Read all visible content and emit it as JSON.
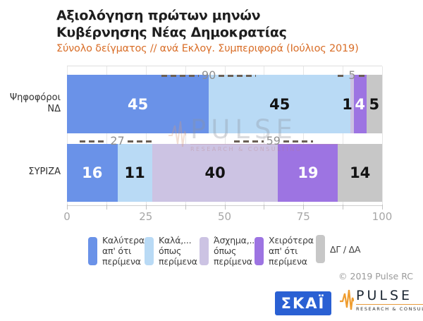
{
  "header": {
    "title_line1": "Αξιολόγηση πρώτων μηνών",
    "title_line2": "Κυβέρνησης Νέας Δημοκρατίας",
    "subtitle": "Σύνολο δείγματος // ανά Εκλογ. Συμπεριφορά (Ιούλιος 2019)"
  },
  "chart_data": {
    "type": "bar",
    "orientation": "horizontal_stacked",
    "title": "Αξιολόγηση πρώτων μηνών Κυβέρνησης Νέας Δημοκρατίας",
    "categories": [
      "Ψηφοφόροι ΝΔ",
      "ΣΥΡΙΖΑ"
    ],
    "category_labels": [
      [
        "Ψηφοφόροι",
        "ΝΔ"
      ],
      [
        "ΣΥΡΙΖΑ"
      ]
    ],
    "series": [
      {
        "name": "Καλύτερα απ' ότι περίμενα",
        "color": "#6a92e8",
        "label_color": "#ffffff",
        "values": [
          45,
          16
        ]
      },
      {
        "name": "Καλά,... όπως περίμενα",
        "color": "#b9daf5",
        "label_color": "#121212",
        "values": [
          45,
          11
        ]
      },
      {
        "name": "Άσχημα,... όπως περίμενα",
        "color": "#ccc3e3",
        "label_color": "#121212",
        "values": [
          1,
          40
        ]
      },
      {
        "name": "Χειρότερα απ' ότι περίμενα",
        "color": "#9d74e2",
        "label_color": "#ffffff",
        "values": [
          4,
          19
        ]
      },
      {
        "name": "ΔΓ / ΔΑ",
        "color": "#c7c7c7",
        "label_color": "#121212",
        "values": [
          5,
          14
        ]
      }
    ],
    "annotations": [
      {
        "row": 0,
        "label": "90",
        "span": [
          0,
          90
        ],
        "center": 45,
        "extent": 30
      },
      {
        "row": 0,
        "label": "5",
        "span": [
          90,
          95
        ],
        "center": 90.5,
        "extent": 9
      },
      {
        "row": 1,
        "label": "27",
        "span": [
          0,
          27
        ],
        "center": 16,
        "extent": 24
      },
      {
        "row": 1,
        "label": "59",
        "span": [
          27,
          86
        ],
        "center": 65.5,
        "extent": 25
      }
    ],
    "x_ticks": [
      0,
      25,
      50,
      75,
      100
    ],
    "x_minor_step": 12.5,
    "xlim": [
      0,
      100
    ],
    "grid": true,
    "legend_position": "bottom"
  },
  "legend": {
    "items": [
      {
        "lines": [
          "Καλύτερα",
          "απ' ότι",
          "περίμενα"
        ],
        "color": "#6a92e8"
      },
      {
        "lines": [
          "Καλά,...",
          "όπως",
          "περίμενα"
        ],
        "color": "#b9daf5"
      },
      {
        "lines": [
          "Άσχημα,...",
          "όπως",
          "περίμενα"
        ],
        "color": "#ccc3e3"
      },
      {
        "lines": [
          "Χειρότερα",
          "απ' ότι",
          "περίμενα"
        ],
        "color": "#9d74e2"
      },
      {
        "lines": [
          "ΔΓ / ΔΑ"
        ],
        "color": "#c7c7c7"
      }
    ]
  },
  "watermark": {
    "text": "PULSE",
    "subtext": "RESEARCH & CONSULTING"
  },
  "footer": {
    "copyright": "© 2019 Pulse RC",
    "skai_logo": "ΣΚΑΪ",
    "pulse_logo": "PULSE",
    "pulse_logo_sub": "RESEARCH & CONSULTING"
  },
  "colors": {
    "subtitle_orange": "#d96e28",
    "annotation_dash": "#6a5f55",
    "annotation_text": "#8f8f8f",
    "skai_blue": "#2a60d3",
    "pulse_orange": "#e89b3c"
  }
}
